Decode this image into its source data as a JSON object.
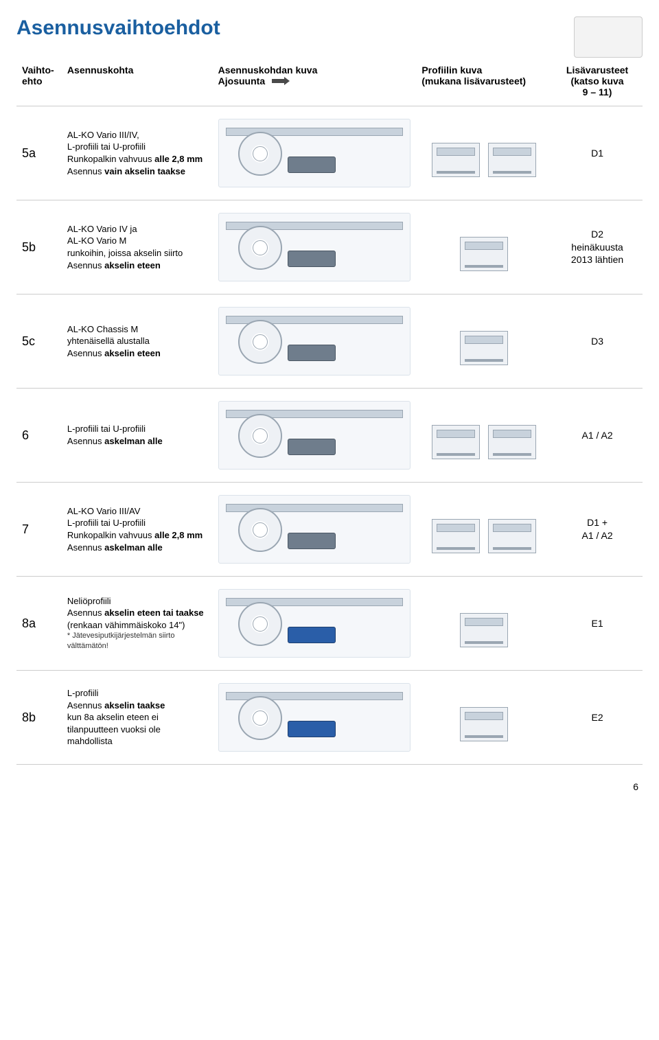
{
  "page": {
    "title": "Asennusvaihtoehdot",
    "number": "6"
  },
  "table": {
    "headers": {
      "col1": "Vaihto-\nehto",
      "col2": "Asennuskohta",
      "col3_line1": "Asennuskohdan kuva",
      "col3_line2": "Ajosuunta",
      "col4_line1": "Profiilin kuva",
      "col4_line2": "(mukana lisävarusteet)",
      "col5_line1": "Lisävarusteet",
      "col5_line2": "(katso kuva",
      "col5_line3": "9 – 11)"
    },
    "rows": [
      {
        "id": "5a",
        "desc_html": "AL-KO Vario III/IV,<br>L-profiili tai U-profiili<br>Runkopalkin vahvuus <strong>alle 2,8 mm</strong><br>Asennus <strong>vain akselin taakse</strong>",
        "acc": "D1",
        "brackets": 2
      },
      {
        "id": "5b",
        "desc_html": "AL-KO Vario IV ja<br>AL-KO Vario M<br>runkoihin, joissa akselin siirto<br>Asennus <strong>akselin eteen</strong>",
        "acc": "D2<br>heinäkuusta<br>2013 lähtien",
        "brackets": 1
      },
      {
        "id": "5c",
        "desc_html": "AL-KO Chassis M<br>yhtenäisellä alustalla<br>Asennus <strong>akselin eteen</strong>",
        "acc": "D3",
        "brackets": 1
      },
      {
        "id": "6",
        "desc_html": "L-profiili tai U-profiili<br>Asennus <strong>askelman alle</strong>",
        "acc": "A1 / A2",
        "brackets": 2
      },
      {
        "id": "7",
        "desc_html": "AL-KO Vario III/AV<br>L-profiili tai U-profiili<br>Runkopalkin vahvuus <strong>alle 2,8 mm</strong><br>Asennus <strong>askelman alle</strong>",
        "acc": "D1 +<br>A1 / A2",
        "brackets": 2
      },
      {
        "id": "8a",
        "desc_html": "Neliöprofiili<br>Asennus <strong>akselin eteen tai taakse</strong><br>(renkaan vähimmäiskoko 14\")",
        "footnote": "* Jätevesiputkijärjestelmän siirto välttämätön!",
        "acc": "E1",
        "brackets": 1,
        "blue": true
      },
      {
        "id": "8b",
        "desc_html": "L-profiili<br>Asennus <strong>akselin taakse</strong><br>kun 8a akselin eteen ei tilanpuutteen vuoksi ole mahdollista",
        "acc": "E2",
        "brackets": 1,
        "blue": true
      }
    ]
  }
}
